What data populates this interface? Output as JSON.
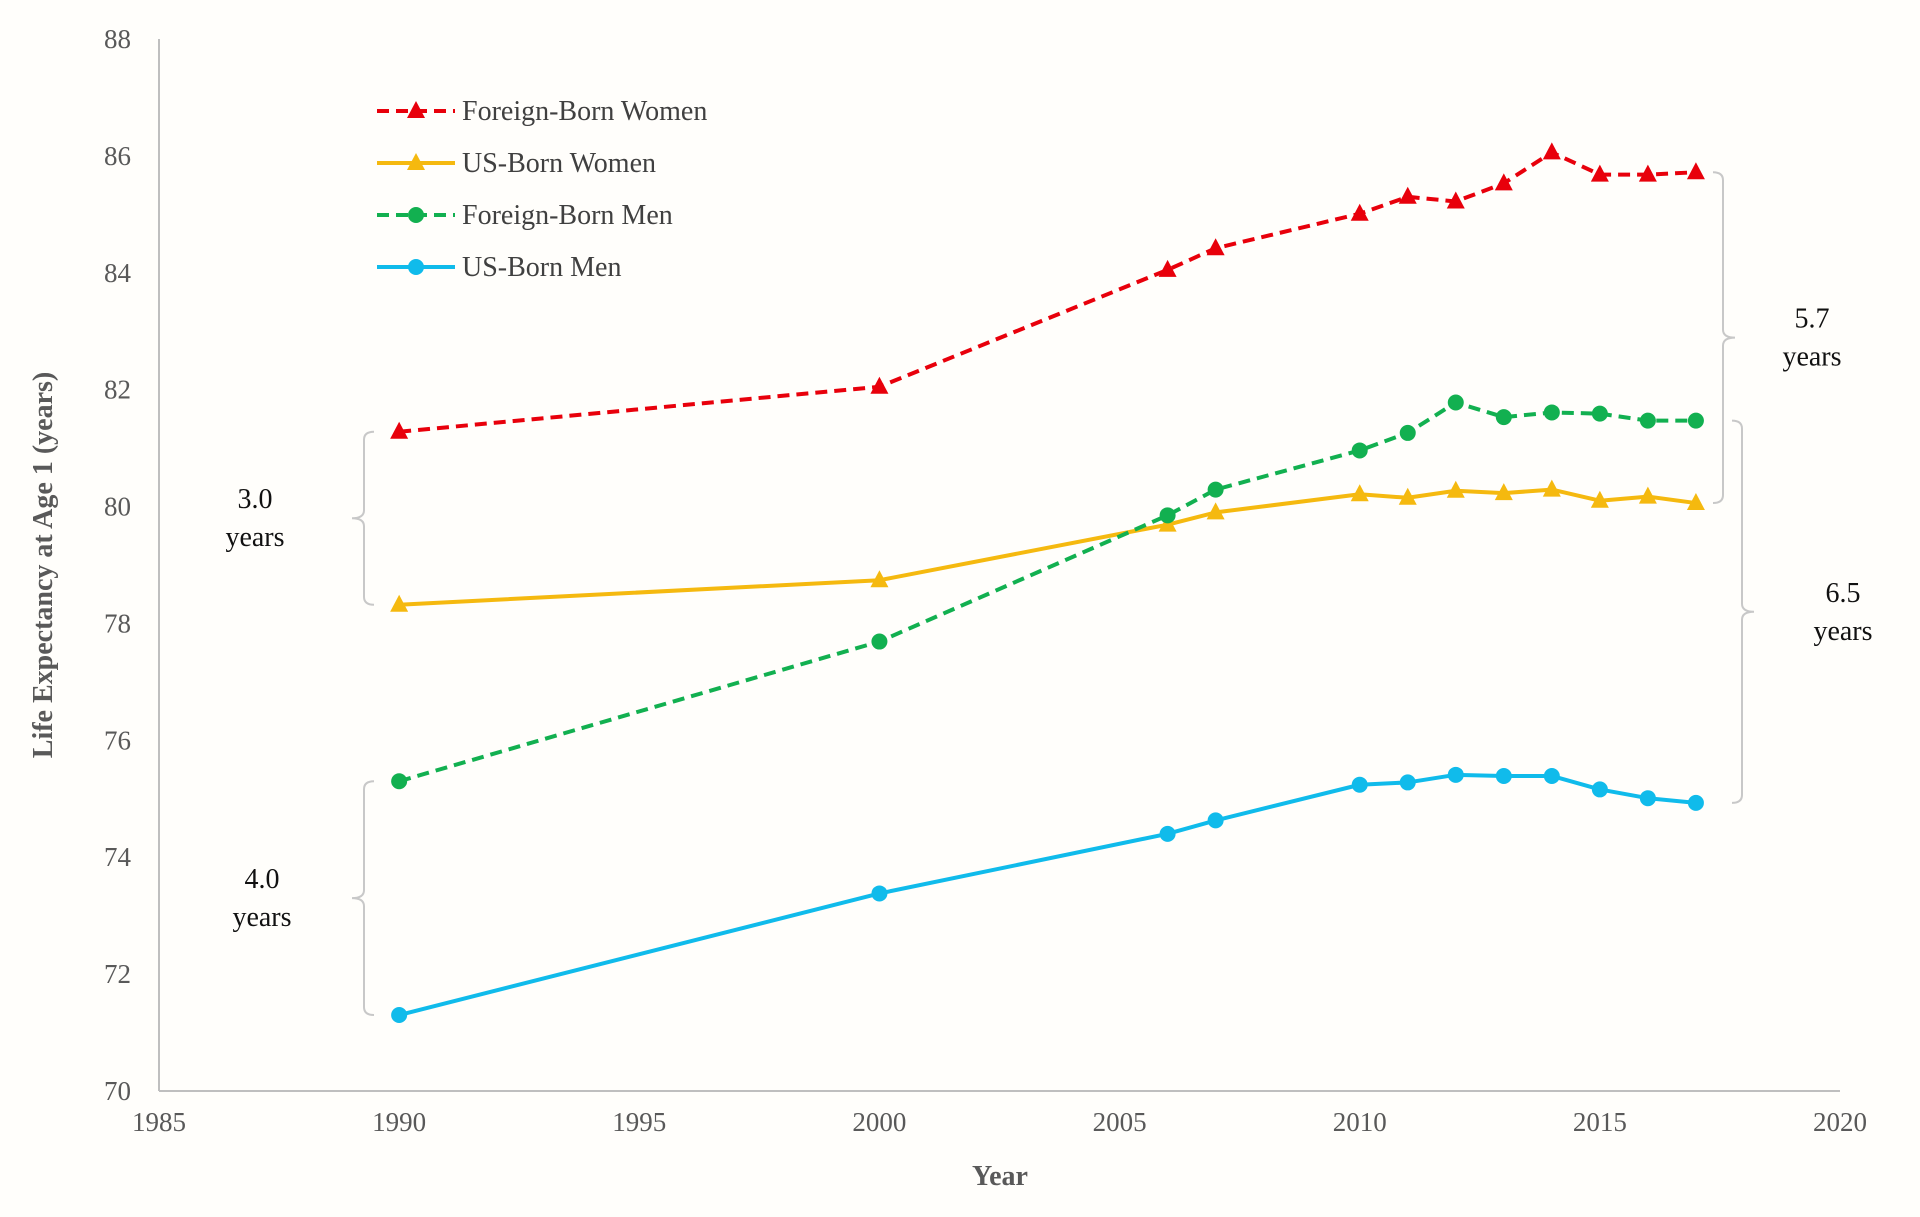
{
  "chart_data": {
    "type": "line",
    "title": "",
    "xlabel": "Year",
    "ylabel": "Life Expectancy at Age 1 (years)",
    "xlim": [
      1985,
      2020
    ],
    "ylim": [
      70,
      88
    ],
    "xticks": [
      1985,
      1990,
      1995,
      2000,
      2005,
      2010,
      2015,
      2020
    ],
    "yticks": [
      70,
      72,
      74,
      76,
      78,
      80,
      82,
      84,
      86,
      88
    ],
    "grid": false,
    "legend_position": "top-left",
    "x": [
      1990,
      2000,
      2006,
      2007,
      2010,
      2011,
      2012,
      2013,
      2014,
      2015,
      2016,
      2017
    ],
    "series": [
      {
        "name": "Foreign-Born Women",
        "color": "#e8000b",
        "dash": true,
        "marker": "triangle",
        "values": [
          81.28,
          82.05,
          84.05,
          84.42,
          85.01,
          85.3,
          85.22,
          85.53,
          86.06,
          85.68,
          85.68,
          85.72
        ]
      },
      {
        "name": "US-Born Women",
        "color": "#f5b90f",
        "dash": false,
        "marker": "triangle",
        "values": [
          78.32,
          78.74,
          79.69,
          79.9,
          80.21,
          80.15,
          80.27,
          80.23,
          80.29,
          80.1,
          80.17,
          80.06
        ]
      },
      {
        "name": "Foreign-Born Men",
        "color": "#12b050",
        "dash": true,
        "marker": "circle",
        "values": [
          75.3,
          77.69,
          79.85,
          80.29,
          80.96,
          81.26,
          81.78,
          81.53,
          81.61,
          81.59,
          81.47,
          81.47
        ]
      },
      {
        "name": "US-Born Men",
        "color": "#10bbeb",
        "dash": false,
        "marker": "circle",
        "values": [
          71.3,
          73.38,
          74.4,
          74.63,
          75.24,
          75.28,
          75.41,
          75.39,
          75.39,
          75.16,
          75.01,
          74.93
        ]
      }
    ],
    "annotations": [
      {
        "line1": "3.0",
        "line2": "years",
        "side": "left",
        "from": 81.28,
        "to": 78.32
      },
      {
        "line1": "4.0",
        "line2": "years",
        "side": "left",
        "from": 75.3,
        "to": 71.3
      },
      {
        "line1": "5.7",
        "line2": "years",
        "side": "right",
        "from": 85.72,
        "to": 80.06
      },
      {
        "line1": "6.5",
        "line2": "years",
        "side": "right",
        "from": 81.47,
        "to": 74.93
      }
    ]
  }
}
